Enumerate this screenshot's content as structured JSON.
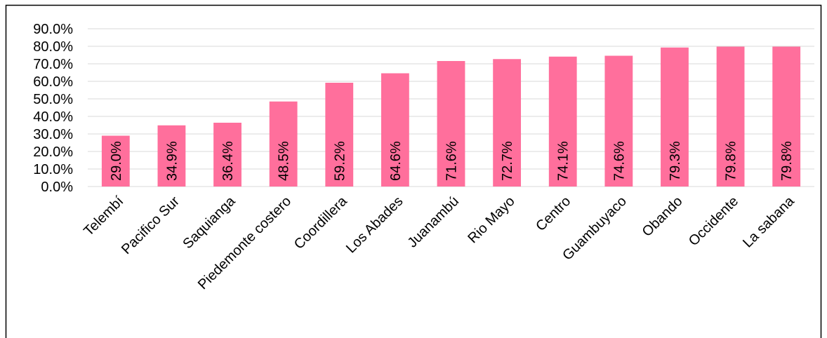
{
  "chart_data": {
    "type": "bar",
    "categories": [
      "Telembí",
      "Pacifico Sur",
      "Saquianga",
      "Piedemonte costero",
      "Coordillera",
      "Los Abades",
      "Juanambú",
      "Rio Mayo",
      "Centro",
      "Guambuyaco",
      "Obando",
      "Occidente",
      "La sabana"
    ],
    "values": [
      29.0,
      34.9,
      36.4,
      48.5,
      59.2,
      64.6,
      71.6,
      72.7,
      74.1,
      74.6,
      79.3,
      79.8,
      79.8
    ],
    "value_labels": [
      "29.0%",
      "34.9%",
      "36.4%",
      "48.5%",
      "59.2%",
      "64.6%",
      "71.6%",
      "72.7%",
      "74.1%",
      "74.6%",
      "79.3%",
      "79.8%",
      "79.8%"
    ],
    "color": "#ff6f9c",
    "ylim": [
      0,
      90
    ],
    "yticks": [
      {
        "value": 0,
        "label": "0.0%"
      },
      {
        "value": 10,
        "label": "10.0%"
      },
      {
        "value": 20,
        "label": "20.0%"
      },
      {
        "value": 30,
        "label": "30.0%"
      },
      {
        "value": 40,
        "label": "40.0%"
      },
      {
        "value": 50,
        "label": "50.0%"
      },
      {
        "value": 60,
        "label": "60.0%"
      },
      {
        "value": 70,
        "label": "70.0%"
      },
      {
        "value": 80,
        "label": "80.0%"
      },
      {
        "value": 90,
        "label": "90.0%"
      }
    ],
    "grid": true
  }
}
